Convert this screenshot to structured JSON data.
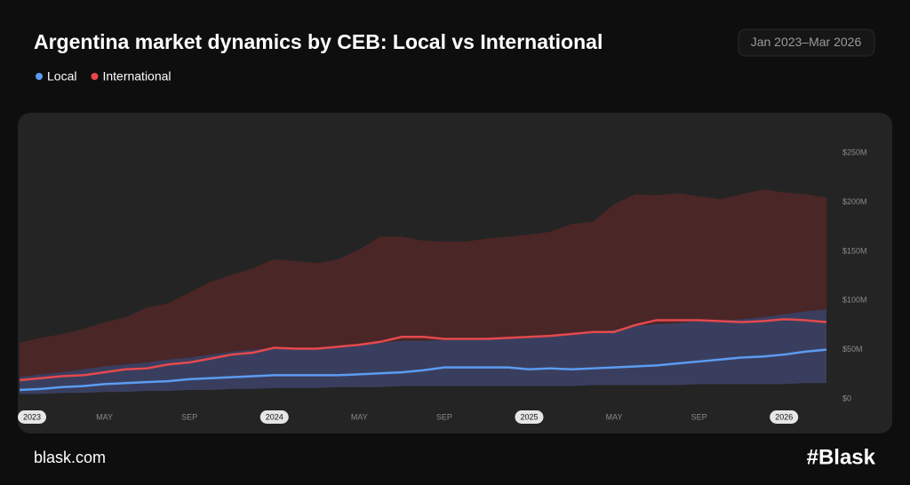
{
  "chart_data": {
    "type": "range-line",
    "title": "Argentina market dynamics by CEB: Local vs International",
    "period": "Jan 2023–Mar 2026",
    "site": "blask.com",
    "brand": "#Blask",
    "categories": [
      "2023",
      null,
      null,
      null,
      "MAY",
      null,
      null,
      null,
      "SEP",
      null,
      null,
      null,
      "2024",
      null,
      null,
      null,
      "MAY",
      null,
      null,
      null,
      "SEP",
      null,
      null,
      null,
      "2025",
      null,
      null,
      null,
      "MAY",
      null,
      null,
      null,
      "SEP",
      null,
      null,
      null,
      "2026",
      null,
      null
    ],
    "series": [
      {
        "name": "International",
        "color": "#e5484d",
        "band_color": "#4a2627",
        "values": [
          19,
          21,
          23,
          24,
          27,
          30,
          31,
          35,
          37,
          41,
          45,
          47,
          52,
          51,
          51,
          53,
          55,
          58,
          63,
          63,
          61,
          61,
          61,
          62,
          63,
          64,
          66,
          68,
          68,
          75,
          80,
          80,
          80,
          79,
          78,
          79,
          81,
          80,
          78
        ],
        "upper": [
          57,
          62,
          66,
          71,
          78,
          83,
          93,
          97,
          108,
          119,
          126,
          133,
          142,
          140,
          138,
          142,
          152,
          165,
          165,
          161,
          160,
          160,
          163,
          165,
          167,
          170,
          178,
          180,
          198,
          208,
          207,
          209,
          206,
          203,
          208,
          213,
          210,
          208,
          205
        ],
        "lower": [
          22,
          25,
          27,
          30,
          33,
          35,
          37,
          40,
          42,
          45,
          48,
          50,
          52,
          52,
          52,
          53,
          55,
          57,
          59,
          59,
          60,
          61,
          61,
          62,
          63,
          64,
          66,
          68,
          70,
          74,
          76,
          77,
          79,
          80,
          81,
          83,
          86,
          89,
          91
        ]
      },
      {
        "name": "Local",
        "color": "#5b9cf2",
        "band_color": "rgba(95,105,190,0.38)",
        "values": [
          9,
          10,
          12,
          13,
          15,
          16,
          17,
          18,
          20,
          21,
          22,
          23,
          24,
          24,
          24,
          24,
          25,
          26,
          27,
          29,
          32,
          32,
          32,
          32,
          30,
          31,
          30,
          31,
          32,
          33,
          34,
          36,
          38,
          40,
          42,
          43,
          45,
          48,
          50
        ],
        "upper": [
          22,
          25,
          27,
          30,
          33,
          35,
          37,
          40,
          42,
          45,
          48,
          50,
          52,
          52,
          52,
          53,
          55,
          57,
          59,
          59,
          60,
          61,
          61,
          62,
          63,
          64,
          66,
          68,
          70,
          74,
          76,
          77,
          79,
          80,
          81,
          83,
          86,
          89,
          91
        ],
        "lower": [
          5,
          5,
          6,
          6,
          7,
          7,
          8,
          8,
          9,
          9,
          10,
          10,
          11,
          11,
          11,
          12,
          12,
          12,
          13,
          13,
          13,
          13,
          13,
          13,
          13,
          13,
          13,
          14,
          14,
          14,
          14,
          14,
          15,
          15,
          15,
          15,
          15,
          16,
          16
        ]
      }
    ],
    "legend_order": [
      1,
      0
    ],
    "ylim": [
      0,
      290
    ],
    "yticks": [
      {
        "value": 0,
        "label": "$0"
      },
      {
        "value": 50,
        "label": "$50M"
      },
      {
        "value": 100,
        "label": "$100M"
      },
      {
        "value": 150,
        "label": "$150M"
      },
      {
        "value": 200,
        "label": "$200M"
      },
      {
        "value": 250,
        "label": "$250M"
      }
    ],
    "grid": false
  }
}
